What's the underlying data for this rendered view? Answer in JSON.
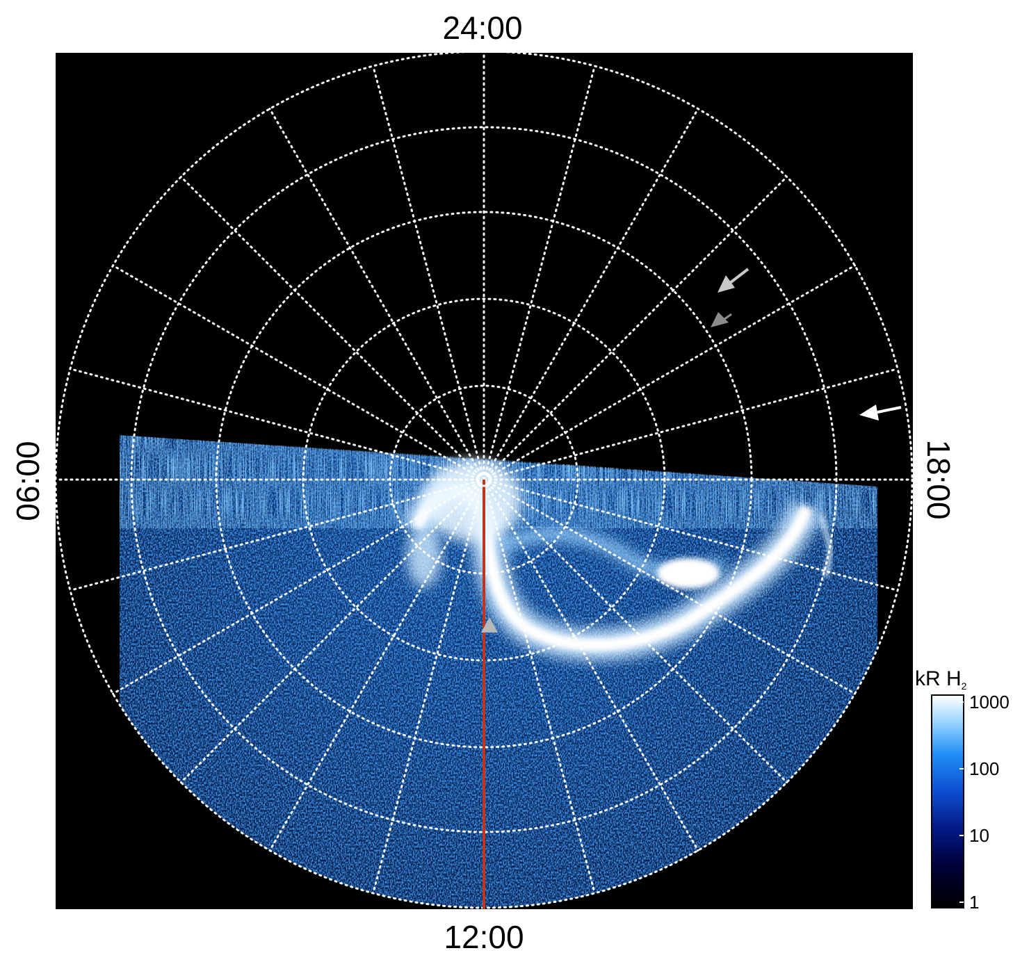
{
  "local_time_labels": {
    "top": "24:00",
    "bottom": "12:00",
    "left": "06:00",
    "right": "18:00"
  },
  "colorbar": {
    "title_prefix": "kR H",
    "title_subscript": "2",
    "ticks": [
      "1000",
      "100",
      "10",
      "1"
    ],
    "scale": "log"
  },
  "colors": {
    "background": "#000000",
    "grid": "#ffffff",
    "emission_dim": "#0a2a78",
    "emission_mid": "#1d7ee8",
    "emission_bright": "#ffffff",
    "meridian_line": "#c0361c",
    "arrow_white": "#ffffff",
    "arrow_grey": "#b8b8b8",
    "arrow_dark_grey": "#8c8c8c"
  },
  "icons": {
    "arrows": [
      "white-arrow-icon",
      "light-grey-arrow-icon",
      "grey-arrow-icon",
      "grey-triangle-marker-icon"
    ]
  }
}
